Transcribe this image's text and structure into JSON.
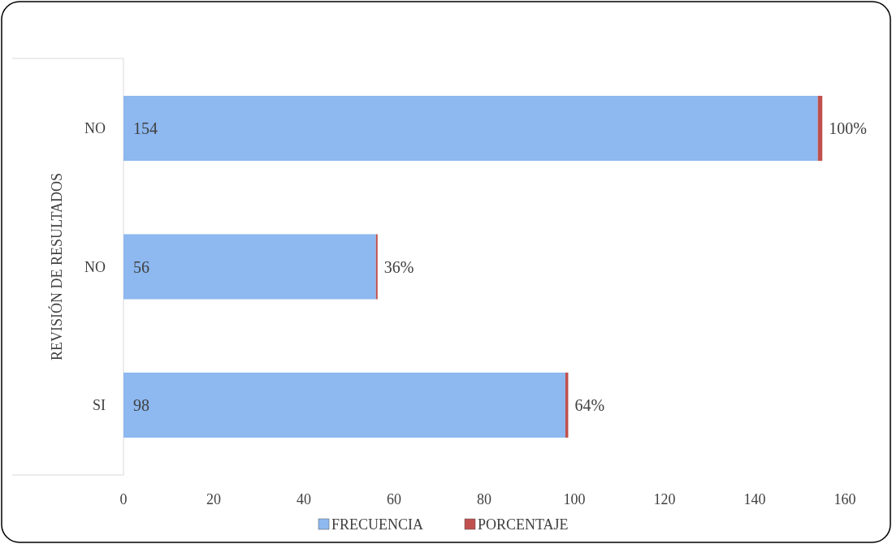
{
  "chart_data": {
    "type": "bar",
    "orientation": "horizontal",
    "stacked": true,
    "ylabel": "REVISIÓN DE RESULTADOS",
    "categories": [
      "NO",
      "NO",
      "SI"
    ],
    "series": [
      {
        "name": "FRECUENCIA",
        "color": "#8db8f0",
        "values": [
          154,
          56,
          98
        ],
        "value_labels": [
          "154",
          "56",
          "98"
        ]
      },
      {
        "name": "PORCENTAJE",
        "color": "#c0504d",
        "values": [
          1,
          0.36,
          0.64
        ],
        "value_labels": [
          "100%",
          "36%",
          "64%"
        ]
      }
    ],
    "xlim": [
      0,
      160
    ],
    "xticks": [
      0,
      20,
      40,
      60,
      80,
      100,
      120,
      140,
      160
    ],
    "grid": false,
    "legend": "bottom"
  }
}
